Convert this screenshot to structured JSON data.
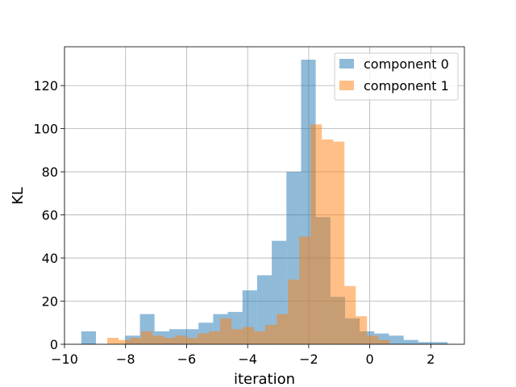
{
  "chart_data": {
    "type": "bar",
    "title": "",
    "xlabel": "iteration",
    "ylabel": "KL",
    "xlim": [
      -10,
      3.1
    ],
    "ylim": [
      0,
      138
    ],
    "xticks": [
      -10,
      -8,
      -6,
      -4,
      -2,
      0,
      2
    ],
    "yticks": [
      0,
      20,
      40,
      60,
      80,
      100,
      120
    ],
    "grid": true,
    "legend_position": "top-right",
    "series": [
      {
        "name": "component 0",
        "color": "#1f77b4",
        "opacity": 0.5,
        "bins": [
          {
            "x0": -9.45,
            "x1": -8.97,
            "count": 6
          },
          {
            "x0": -8.97,
            "x1": -8.49,
            "count": 0
          },
          {
            "x0": -8.49,
            "x1": -8.01,
            "count": 0
          },
          {
            "x0": -8.01,
            "x1": -7.53,
            "count": 4
          },
          {
            "x0": -7.53,
            "x1": -7.05,
            "count": 14
          },
          {
            "x0": -7.05,
            "x1": -6.57,
            "count": 6
          },
          {
            "x0": -6.57,
            "x1": -6.09,
            "count": 7
          },
          {
            "x0": -6.09,
            "x1": -5.61,
            "count": 7
          },
          {
            "x0": -5.61,
            "x1": -5.13,
            "count": 10
          },
          {
            "x0": -5.13,
            "x1": -4.65,
            "count": 14
          },
          {
            "x0": -4.65,
            "x1": -4.17,
            "count": 15
          },
          {
            "x0": -4.17,
            "x1": -3.69,
            "count": 25
          },
          {
            "x0": -3.69,
            "x1": -3.21,
            "count": 32
          },
          {
            "x0": -3.21,
            "x1": -2.73,
            "count": 48
          },
          {
            "x0": -2.73,
            "x1": -2.25,
            "count": 80
          },
          {
            "x0": -2.25,
            "x1": -1.77,
            "count": 132
          },
          {
            "x0": -1.77,
            "x1": -1.29,
            "count": 59
          },
          {
            "x0": -1.29,
            "x1": -0.81,
            "count": 22
          },
          {
            "x0": -0.81,
            "x1": -0.33,
            "count": 12
          },
          {
            "x0": -0.33,
            "x1": 0.15,
            "count": 6
          },
          {
            "x0": 0.15,
            "x1": 0.63,
            "count": 5
          },
          {
            "x0": 0.63,
            "x1": 1.11,
            "count": 4
          },
          {
            "x0": 1.11,
            "x1": 1.59,
            "count": 2
          },
          {
            "x0": 1.59,
            "x1": 2.07,
            "count": 1
          },
          {
            "x0": 2.07,
            "x1": 2.55,
            "count": 1
          }
        ]
      },
      {
        "name": "component 1",
        "color": "#ff7f0e",
        "opacity": 0.5,
        "bins": [
          {
            "x0": -8.6,
            "x1": -8.23,
            "count": 3
          },
          {
            "x0": -8.23,
            "x1": -7.86,
            "count": 2
          },
          {
            "x0": -7.86,
            "x1": -7.49,
            "count": 3
          },
          {
            "x0": -7.49,
            "x1": -7.12,
            "count": 6
          },
          {
            "x0": -7.12,
            "x1": -6.75,
            "count": 4
          },
          {
            "x0": -6.75,
            "x1": -6.38,
            "count": 3
          },
          {
            "x0": -6.38,
            "x1": -6.01,
            "count": 4
          },
          {
            "x0": -6.01,
            "x1": -5.64,
            "count": 3
          },
          {
            "x0": -5.64,
            "x1": -5.27,
            "count": 5
          },
          {
            "x0": -5.27,
            "x1": -4.9,
            "count": 6
          },
          {
            "x0": -4.9,
            "x1": -4.53,
            "count": 12
          },
          {
            "x0": -4.53,
            "x1": -4.16,
            "count": 7
          },
          {
            "x0": -4.16,
            "x1": -3.79,
            "count": 8
          },
          {
            "x0": -3.79,
            "x1": -3.42,
            "count": 6
          },
          {
            "x0": -3.42,
            "x1": -3.05,
            "count": 9
          },
          {
            "x0": -3.05,
            "x1": -2.68,
            "count": 14
          },
          {
            "x0": -2.68,
            "x1": -2.31,
            "count": 30
          },
          {
            "x0": -2.31,
            "x1": -1.94,
            "count": 50
          },
          {
            "x0": -1.94,
            "x1": -1.57,
            "count": 102
          },
          {
            "x0": -1.57,
            "x1": -1.2,
            "count": 95
          },
          {
            "x0": -1.2,
            "x1": -0.83,
            "count": 94
          },
          {
            "x0": -0.83,
            "x1": -0.46,
            "count": 27
          },
          {
            "x0": -0.46,
            "x1": -0.09,
            "count": 13
          },
          {
            "x0": -0.09,
            "x1": 0.28,
            "count": 4
          },
          {
            "x0": 0.28,
            "x1": 0.65,
            "count": 2
          }
        ]
      }
    ]
  }
}
